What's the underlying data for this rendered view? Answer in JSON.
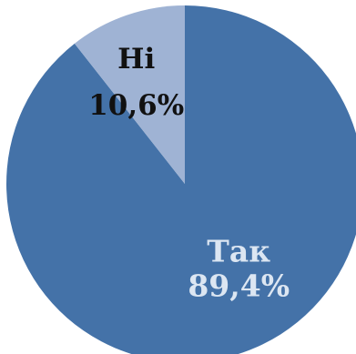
{
  "chart_data": {
    "type": "pie",
    "start_angle_deg": 0,
    "direction": "clockwise",
    "slices": [
      {
        "name": "Так",
        "value": 89.4,
        "value_label": "89,4%",
        "color": "#4472a8",
        "label_color": "#dce6f2"
      },
      {
        "name": "Ні",
        "value": 10.6,
        "value_label": "10,6%",
        "color": "#9fb3d4",
        "label_color": "#111111"
      }
    ]
  }
}
